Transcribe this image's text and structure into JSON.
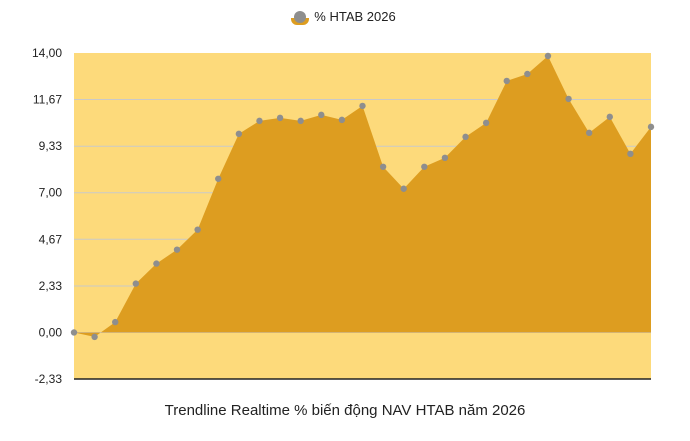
{
  "chart_data": {
    "type": "area",
    "caption": "Trendline Realtime % biến động NAV HTAB năm 2026",
    "legend": {
      "label": "% HTAB 2026",
      "placement": "top"
    },
    "series": [
      {
        "name": "% HTAB 2026",
        "values": [
          0.0,
          -0.22,
          0.52,
          2.45,
          3.45,
          4.15,
          5.15,
          7.7,
          9.95,
          10.6,
          10.75,
          10.6,
          10.9,
          10.65,
          11.35,
          8.3,
          7.2,
          8.3,
          8.75,
          9.8,
          10.5,
          12.6,
          12.95,
          13.85,
          11.7,
          10.0,
          10.8,
          8.95,
          10.3
        ]
      }
    ],
    "yticks": [
      "14,00",
      "11,67",
      "9,33",
      "7,00",
      "4,67",
      "2,33",
      "0,00",
      "-2,33"
    ],
    "ylim": [
      -2.33,
      14.0
    ],
    "grid": true,
    "colors": {
      "plot_background": "#fdda7b",
      "area_fill": "#dd9d20",
      "marker": "#8e8e8e",
      "gridline": "#c9c9c9",
      "axis_line": "#222222"
    }
  }
}
